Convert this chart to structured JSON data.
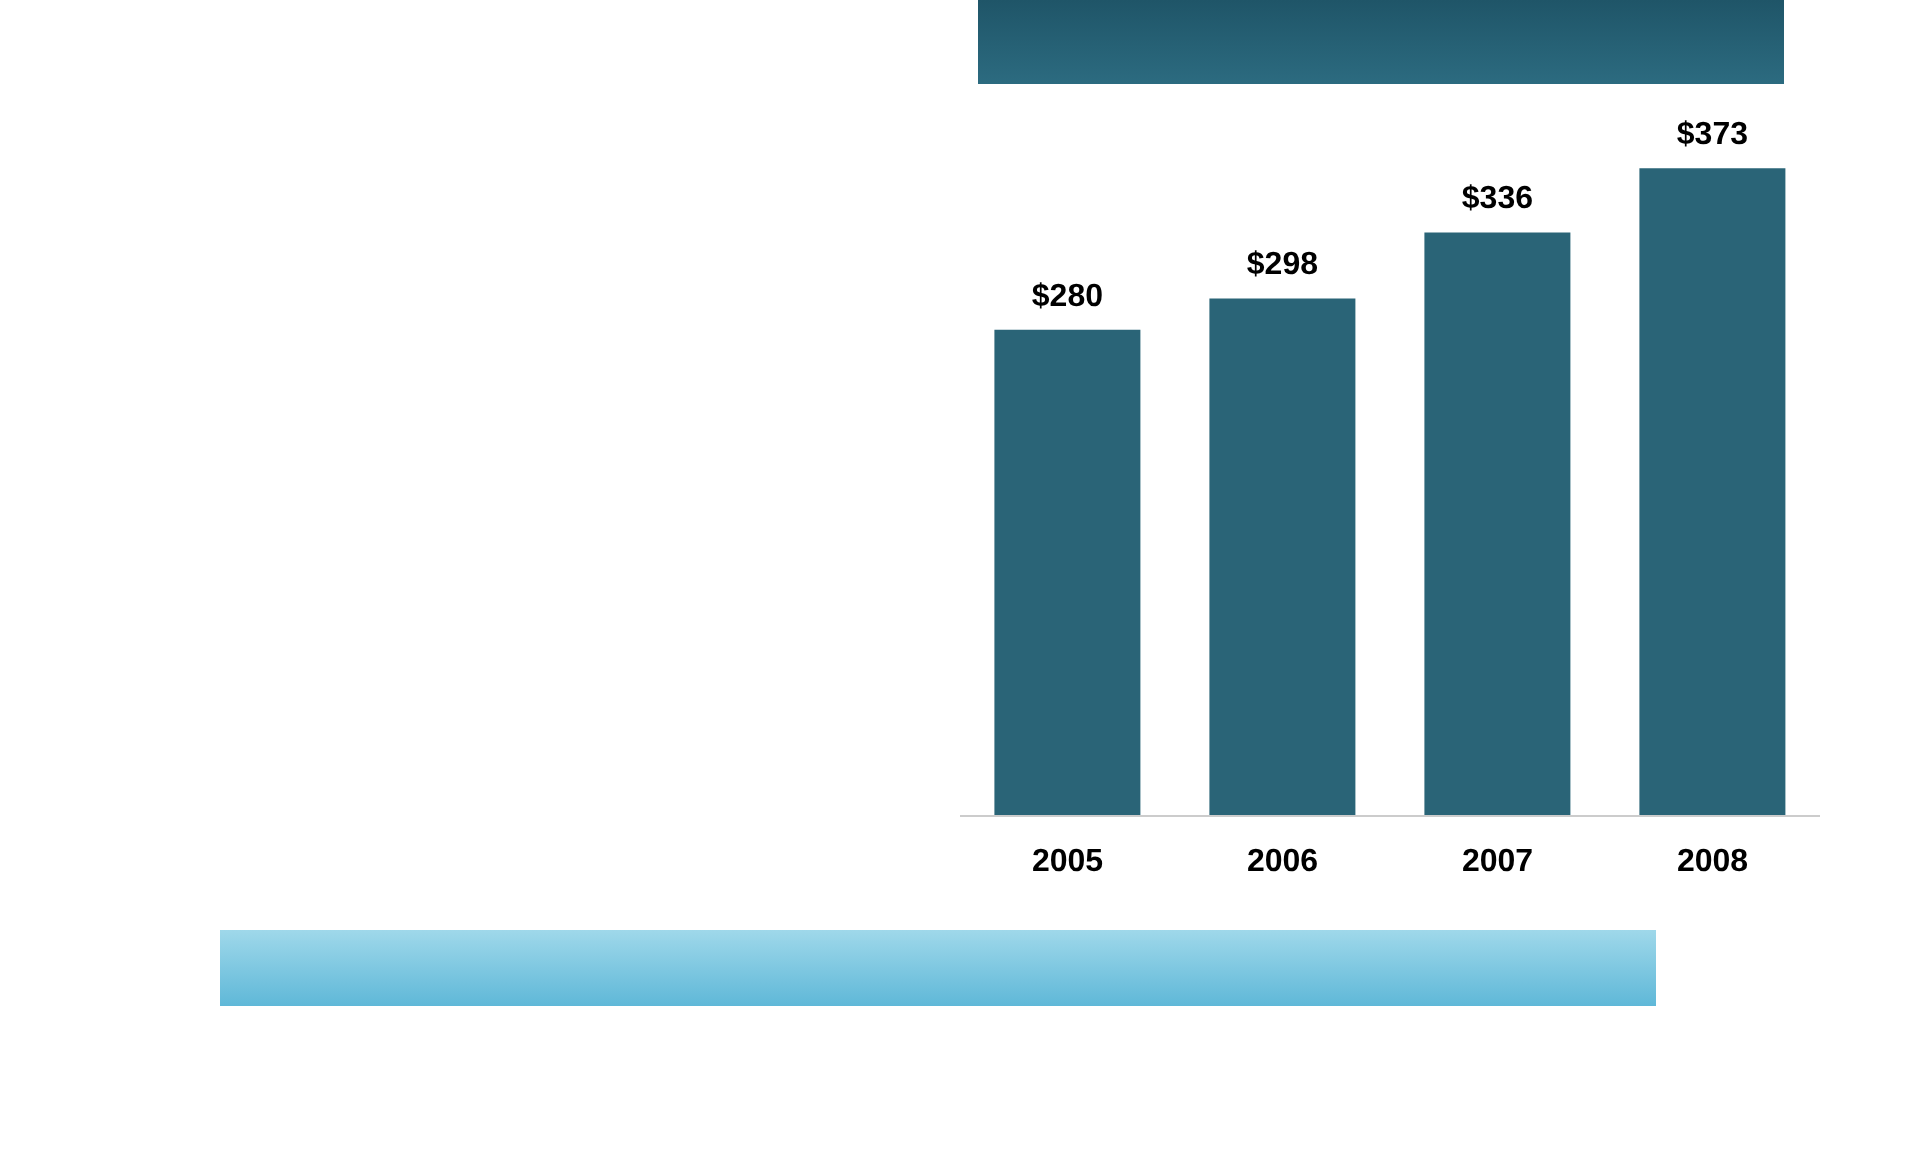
{
  "chart_data": {
    "type": "bar",
    "categories": [
      "2005",
      "2006",
      "2007",
      "2008"
    ],
    "values": [
      280,
      298,
      336,
      373
    ],
    "value_labels": [
      "$280",
      "$298",
      "$336",
      "$373"
    ],
    "color": "#2a6477"
  }
}
